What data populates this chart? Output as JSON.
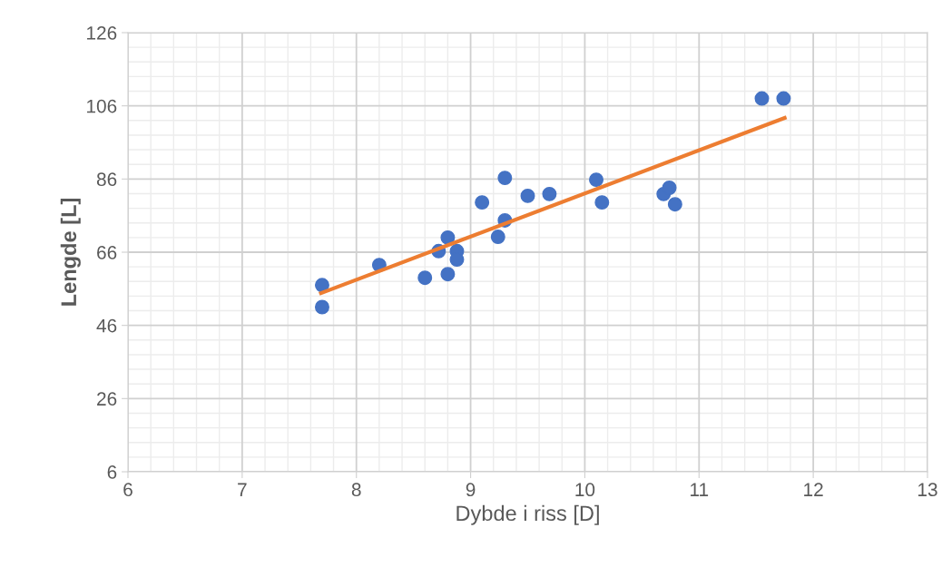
{
  "chart_data": {
    "type": "scatter",
    "xlabel": "Dybde i riss [D]",
    "ylabel": "Lengde [L]",
    "xlim": [
      6,
      13
    ],
    "xticks": [
      6,
      7,
      8,
      9,
      10,
      11,
      12,
      13
    ],
    "ylim": [
      6,
      126
    ],
    "yticks": [
      6,
      26,
      46,
      66,
      86,
      106,
      126
    ],
    "grid": true,
    "legend": false,
    "series": [
      {
        "marker": "circle",
        "color": "#4472c4",
        "x": [
          7.7,
          7.7,
          8.2,
          8.6,
          8.8,
          8.72,
          8.8,
          8.88,
          8.88,
          9.1,
          9.24,
          9.3,
          9.3,
          9.5,
          9.69,
          10.1,
          10.15,
          10.69,
          10.74,
          10.79,
          11.55,
          11.74
        ],
        "values": [
          57,
          51,
          62.5,
          59,
          60,
          66.3,
          70,
          66.3,
          64,
          79.6,
          70.2,
          86.3,
          74.7,
          81.4,
          81.9,
          85.8,
          79.6,
          81.9,
          83.6,
          79.1,
          108,
          108
        ]
      },
      {
        "type": "line",
        "color": "#ed7d31",
        "x": [
          7.69,
          11.75
        ],
        "values": [
          54.8,
          102.7
        ]
      }
    ]
  }
}
